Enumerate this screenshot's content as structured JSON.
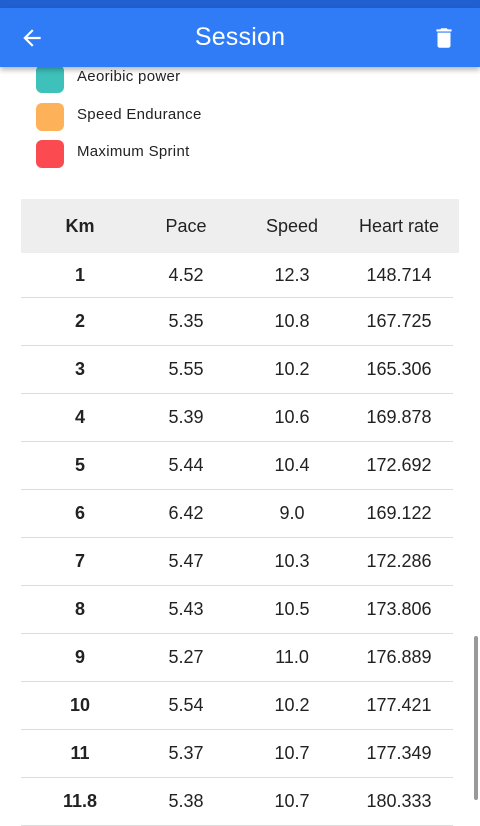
{
  "app_bar": {
    "title": "Session",
    "back_icon": "arrow-back-icon",
    "delete_icon": "trash-icon",
    "color": "#2f7cf6"
  },
  "legend": [
    {
      "label": "Aeoribic power",
      "color": "#3ec1bb"
    },
    {
      "label": "Speed Endurance",
      "color": "#fdb25a"
    },
    {
      "label": "Maximum Sprint",
      "color": "#fb4a50"
    }
  ],
  "table": {
    "headers": [
      "Km",
      "Pace",
      "Speed",
      "Heart rate"
    ],
    "rows": [
      [
        "1",
        "4.52",
        "12.3",
        "148.714"
      ],
      [
        "2",
        "5.35",
        "10.8",
        "167.725"
      ],
      [
        "3",
        "5.55",
        "10.2",
        "165.306"
      ],
      [
        "4",
        "5.39",
        "10.6",
        "169.878"
      ],
      [
        "5",
        "5.44",
        "10.4",
        "172.692"
      ],
      [
        "6",
        "6.42",
        "9.0",
        "169.122"
      ],
      [
        "7",
        "5.47",
        "10.3",
        "172.286"
      ],
      [
        "8",
        "5.43",
        "10.5",
        "173.806"
      ],
      [
        "9",
        "5.27",
        "11.0",
        "176.889"
      ],
      [
        "10",
        "5.54",
        "10.2",
        "177.421"
      ],
      [
        "11",
        "5.37",
        "10.7",
        "177.349"
      ],
      [
        "11.8",
        "5.38",
        "10.7",
        "180.333"
      ]
    ]
  }
}
